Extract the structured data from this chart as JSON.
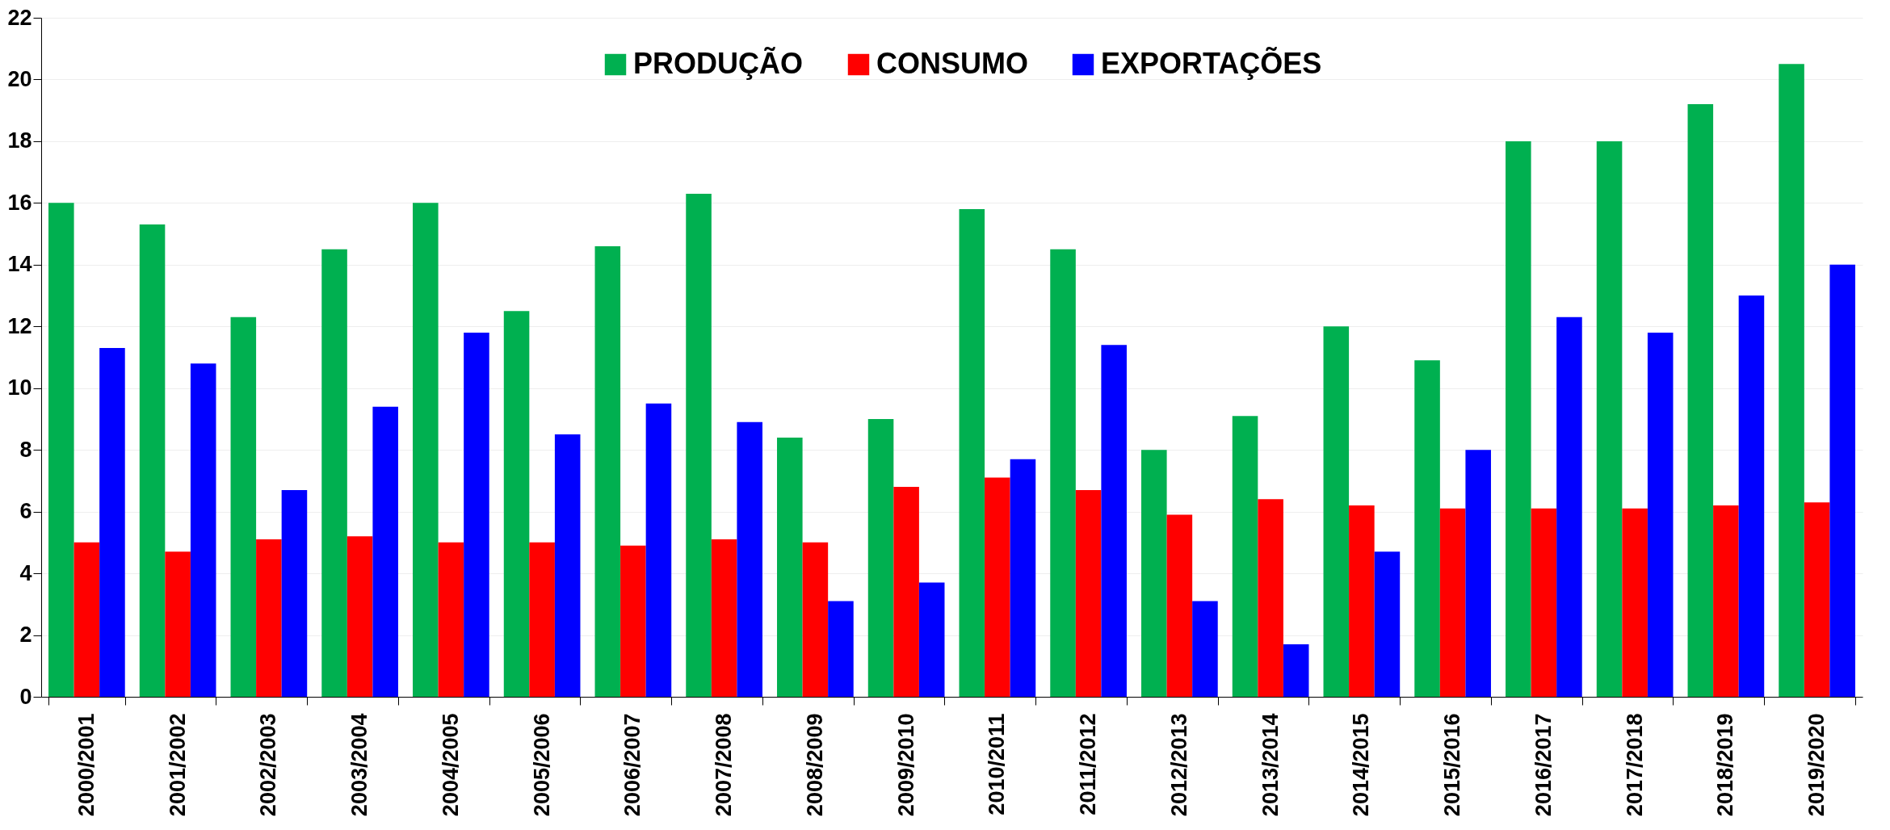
{
  "chart_data": {
    "type": "bar",
    "categories": [
      "2000/2001",
      "2001/2002",
      "2002/2003",
      "2003/2004",
      "2004/2005",
      "2005/2006",
      "2006/2007",
      "2007/2008",
      "2008/2009",
      "2009/2010",
      "2010/2011",
      "2011/2012",
      "2012/2013",
      "2013/2014",
      "2014/2015",
      "2015/2016",
      "2016/2017",
      "2017/2018",
      "2018/2019",
      "2019/2020"
    ],
    "series": [
      {
        "name": "PRODUÇÃO",
        "color": "#00b050",
        "values": [
          16.0,
          15.3,
          12.3,
          14.5,
          16.0,
          12.5,
          14.6,
          16.3,
          8.4,
          9.0,
          15.8,
          14.5,
          8.0,
          9.1,
          12.0,
          10.9,
          18.0,
          18.0,
          19.2,
          20.5
        ]
      },
      {
        "name": "CONSUMO",
        "color": "#ff0000",
        "values": [
          5.0,
          4.7,
          5.1,
          5.2,
          5.0,
          5.0,
          4.9,
          5.1,
          5.0,
          6.8,
          7.1,
          6.7,
          5.9,
          6.4,
          6.2,
          6.1,
          6.1,
          6.1,
          6.2,
          6.3
        ]
      },
      {
        "name": "EXPORTAÇÕES",
        "color": "#0000ff",
        "values": [
          11.3,
          10.8,
          6.7,
          9.4,
          11.8,
          8.5,
          9.5,
          8.9,
          3.1,
          3.7,
          7.7,
          11.4,
          3.1,
          1.7,
          4.7,
          8.0,
          12.3,
          11.8,
          13.0,
          14.0
        ]
      }
    ],
    "ylim": [
      0,
      22
    ],
    "yticks": [
      0,
      2,
      4,
      6,
      8,
      10,
      12,
      14,
      16,
      18,
      20,
      22
    ],
    "grid": "y",
    "legend": "top"
  }
}
